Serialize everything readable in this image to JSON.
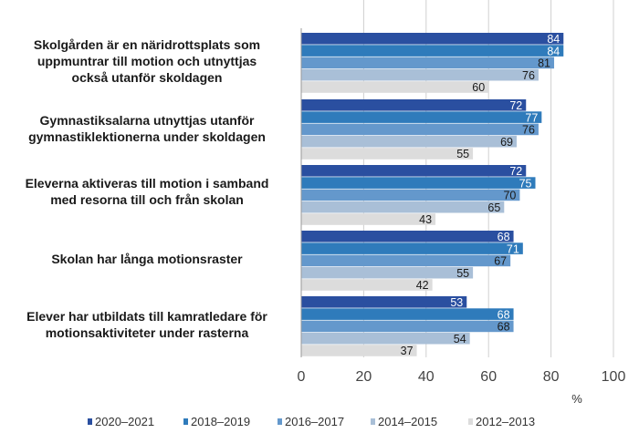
{
  "chart_data": {
    "type": "bar",
    "orientation": "horizontal",
    "categories": [
      "Skolgården är en näridrottsplats som uppmuntrar till motion och utnyttjas också utanför skoldagen",
      "Gymnastiksalarna utnyttjas utanför gymnastiklektionerna under skoldagen",
      "Eleverna aktiveras till motion i samband med resorna till och från skolan",
      "Skolan har långa motionsraster",
      "Elever har utbildats till kamratledare för motionsaktiviteter under rasterna"
    ],
    "category_lines": [
      [
        "Skolgården är en näridrottsplats som",
        "uppmuntrar till motion och utnyttjas",
        "också utanför skoldagen"
      ],
      [
        "Gymnastiksalarna utnyttjas utanför",
        "gymnastiklektionerna under skoldagen"
      ],
      [
        "Eleverna aktiveras till motion i samband",
        "med resorna till och från skolan"
      ],
      [
        "Skolan har långa motionsraster"
      ],
      [
        "Elever har utbildats till kamratledare för",
        "motionsaktiviteter under rasterna"
      ]
    ],
    "series": [
      {
        "name": "2020–2021",
        "color": "#2a4fa0",
        "label_color": "#ffffff",
        "values": [
          84,
          72,
          72,
          68,
          53
        ]
      },
      {
        "name": "2018–2019",
        "color": "#2f7bbb",
        "label_color": "#ffffff",
        "values": [
          84,
          77,
          75,
          71,
          68
        ]
      },
      {
        "name": "2016–2017",
        "color": "#6498cc",
        "label_color": "#1a1a1a",
        "values": [
          81,
          76,
          70,
          67,
          68
        ]
      },
      {
        "name": "2014–2015",
        "color": "#a9bfd7",
        "label_color": "#1a1a1a",
        "values": [
          76,
          69,
          65,
          55,
          54
        ]
      },
      {
        "name": "2012–2013",
        "color": "#dcdcdc",
        "label_color": "#1a1a1a",
        "values": [
          60,
          55,
          43,
          42,
          37
        ]
      }
    ],
    "xlim": [
      0,
      100
    ],
    "x_ticks": [
      "0",
      "20",
      "40",
      "60",
      "80",
      "100"
    ],
    "xlabel": "%",
    "grid": true,
    "legend_position": "bottom"
  }
}
